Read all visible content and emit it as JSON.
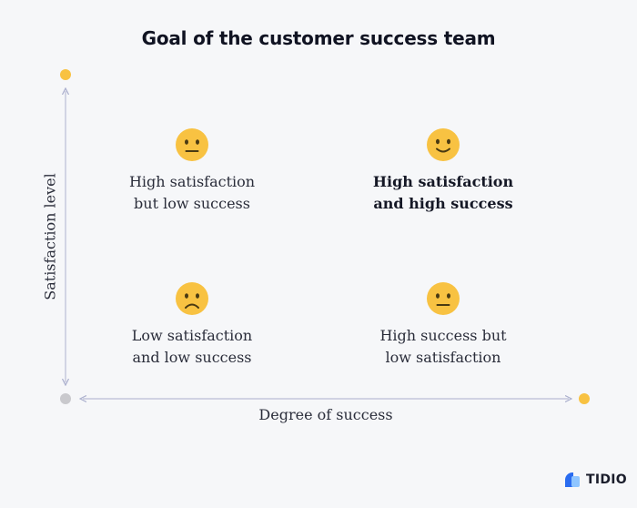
{
  "title": "Goal of the customer success team",
  "y_axis_label": "Satisfaction level",
  "x_axis_label": "Degree of success",
  "quadrants": [
    {
      "text": "High satisfaction\nbut low success",
      "icon": "neutral-face-icon"
    },
    {
      "text": "High satisfaction\nand high success",
      "icon": "slight-smile-face-icon"
    },
    {
      "text": "Low satisfaction\nand low success",
      "icon": "frowning-face-icon"
    },
    {
      "text": "High success but\nlow satisfaction",
      "icon": "neutral-face-icon"
    }
  ],
  "colors": {
    "accent_dot": "#f8c242",
    "origin_dot": "#c9c9cd",
    "axis_line": "#b9bdd6",
    "face": "#f8c242",
    "face_features": "#4a3a12"
  },
  "brand": {
    "name": "TIDIO",
    "icon": "tidio-logo-icon"
  }
}
